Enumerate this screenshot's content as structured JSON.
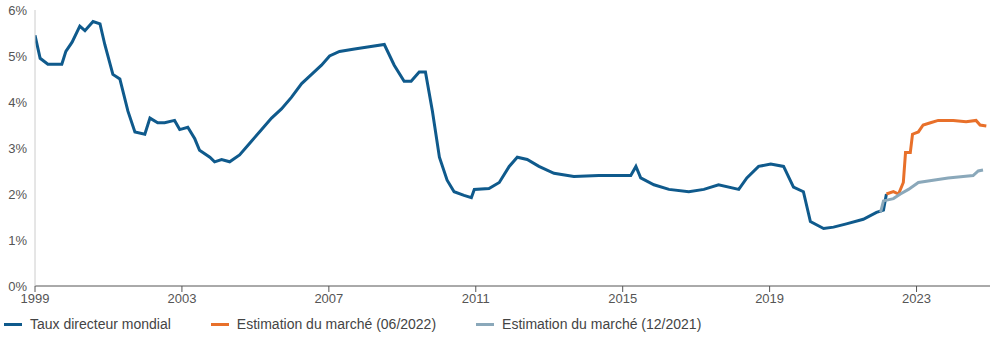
{
  "chart_data": {
    "type": "line",
    "xlim": [
      1999,
      2025
    ],
    "xticks": [
      1999,
      2003,
      2007,
      2011,
      2015,
      2019,
      2023
    ],
    "ylim": [
      0,
      6
    ],
    "yticks": [
      {
        "value": 0,
        "label": "0%"
      },
      {
        "value": 1,
        "label": "1%"
      },
      {
        "value": 2,
        "label": "2%"
      },
      {
        "value": 3,
        "label": "3%"
      },
      {
        "value": 4,
        "label": "4%"
      },
      {
        "value": 5,
        "label": "5%"
      },
      {
        "value": 6,
        "label": "6%"
      }
    ],
    "grid": false,
    "legend": "bottom",
    "series": [
      {
        "name": "Taux directeur mondial",
        "color": "#0f5a8c",
        "x": [
          1999.0,
          1999.14,
          1999.35,
          1999.73,
          1999.84,
          2000.01,
          2000.22,
          2000.36,
          2000.58,
          2000.77,
          2000.9,
          2001.12,
          2001.31,
          2001.53,
          2001.72,
          2001.99,
          2002.13,
          2002.34,
          2002.53,
          2002.8,
          2002.94,
          2003.16,
          2003.35,
          2003.48,
          2003.76,
          2003.89,
          2004.08,
          2004.3,
          2004.57,
          2004.84,
          2005.17,
          2005.44,
          2005.71,
          2005.98,
          2006.26,
          2006.53,
          2006.8,
          2007.02,
          2007.29,
          2007.7,
          2008.1,
          2008.51,
          2008.78,
          2009.05,
          2009.24,
          2009.46,
          2009.63,
          2009.82,
          2010.01,
          2010.22,
          2010.41,
          2010.68,
          2010.88,
          2010.96,
          2011.36,
          2011.64,
          2011.91,
          2012.13,
          2012.4,
          2012.72,
          2013.13,
          2013.67,
          2014.35,
          2014.9,
          2015.22,
          2015.36,
          2015.49,
          2015.85,
          2016.26,
          2016.8,
          2017.21,
          2017.61,
          2018.16,
          2018.38,
          2018.7,
          2019.03,
          2019.38,
          2019.65,
          2019.92,
          2020.11,
          2020.47,
          2020.74,
          2021.09,
          2021.55,
          2021.91,
          2022.1,
          2022.18
        ],
        "values": [
          5.45,
          4.95,
          4.82,
          4.82,
          5.1,
          5.3,
          5.65,
          5.55,
          5.75,
          5.7,
          5.25,
          4.6,
          4.5,
          3.8,
          3.35,
          3.3,
          3.65,
          3.55,
          3.55,
          3.6,
          3.4,
          3.45,
          3.2,
          2.95,
          2.8,
          2.7,
          2.75,
          2.7,
          2.85,
          3.1,
          3.4,
          3.65,
          3.85,
          4.1,
          4.4,
          4.6,
          4.8,
          5.0,
          5.1,
          5.15,
          5.2,
          5.25,
          4.8,
          4.45,
          4.45,
          4.65,
          4.65,
          3.8,
          2.8,
          2.3,
          2.05,
          1.97,
          1.92,
          2.1,
          2.12,
          2.25,
          2.6,
          2.8,
          2.75,
          2.6,
          2.45,
          2.38,
          2.4,
          2.4,
          2.4,
          2.6,
          2.35,
          2.2,
          2.1,
          2.05,
          2.1,
          2.2,
          2.1,
          2.35,
          2.6,
          2.65,
          2.6,
          2.15,
          2.05,
          1.4,
          1.25,
          1.28,
          1.35,
          1.45,
          1.6,
          1.65,
          2.0
        ]
      },
      {
        "name": "Estimation du marché (06/2022)",
        "color": "#e8702a",
        "x": [
          2022.18,
          2022.37,
          2022.51,
          2022.64,
          2022.7,
          2022.83,
          2022.89,
          2023.05,
          2023.18,
          2023.38,
          2023.59,
          2024.0,
          2024.35,
          2024.62,
          2024.73,
          2024.9
        ],
        "values": [
          2.0,
          2.05,
          2.0,
          2.25,
          2.9,
          2.9,
          3.3,
          3.35,
          3.5,
          3.55,
          3.6,
          3.6,
          3.57,
          3.6,
          3.5,
          3.48
        ]
      },
      {
        "name": "Estimation du marché (12/2021)",
        "color": "#8aa8ba",
        "x": [
          2022.02,
          2022.1,
          2022.37,
          2022.56,
          2022.78,
          2023.05,
          2023.45,
          2023.86,
          2024.27,
          2024.54,
          2024.68,
          2024.81
        ],
        "values": [
          1.6,
          1.85,
          1.9,
          2.0,
          2.1,
          2.25,
          2.3,
          2.35,
          2.38,
          2.4,
          2.5,
          2.52
        ]
      }
    ]
  }
}
